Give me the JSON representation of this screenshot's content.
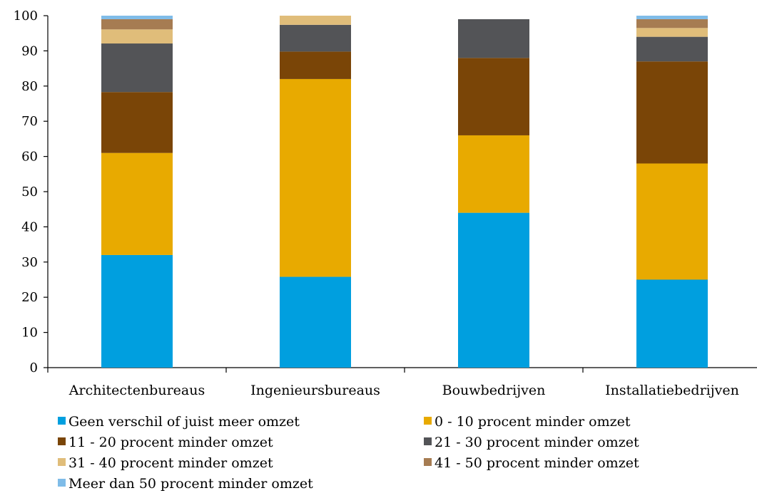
{
  "chart_data": {
    "type": "bar",
    "stacked": true,
    "categories": [
      "Architectenbureaus",
      "Ingenieursbureaus",
      "Bouwbedrijven",
      "Installatiebedrijven"
    ],
    "series": [
      {
        "name": "Geen verschil of juist meer omzet",
        "color": "#009FDF",
        "values": [
          32,
          25.8,
          44,
          25
        ]
      },
      {
        "name": "0 - 10 procent minder omzet",
        "color": "#E8AA00",
        "values": [
          29,
          56.2,
          22,
          33
        ]
      },
      {
        "name": "11 - 20 procent minder omzet",
        "color": "#7A4507",
        "values": [
          17.3,
          7.8,
          22,
          29
        ]
      },
      {
        "name": "21 - 30 procent minder omzet",
        "color": "#535457",
        "values": [
          13.8,
          7.6,
          11,
          7
        ]
      },
      {
        "name": "31 - 40 procent minder omzet",
        "color": "#E0BD7A",
        "values": [
          4,
          2.6,
          0,
          2.5
        ]
      },
      {
        "name": "41 - 50 procent minder omzet",
        "color": "#A67C52",
        "values": [
          2.9,
          0,
          0,
          2.5
        ]
      },
      {
        "name": "Meer dan 50 procent minder omzet",
        "color": "#7FBCE8",
        "values": [
          1,
          0,
          0,
          1
        ]
      }
    ],
    "ylim": [
      0,
      100
    ],
    "yticks": [
      "0",
      "10",
      "20",
      "30",
      "40",
      "50",
      "60",
      "70",
      "80",
      "90",
      "100"
    ],
    "grid": false,
    "legend_position": "bottom"
  }
}
